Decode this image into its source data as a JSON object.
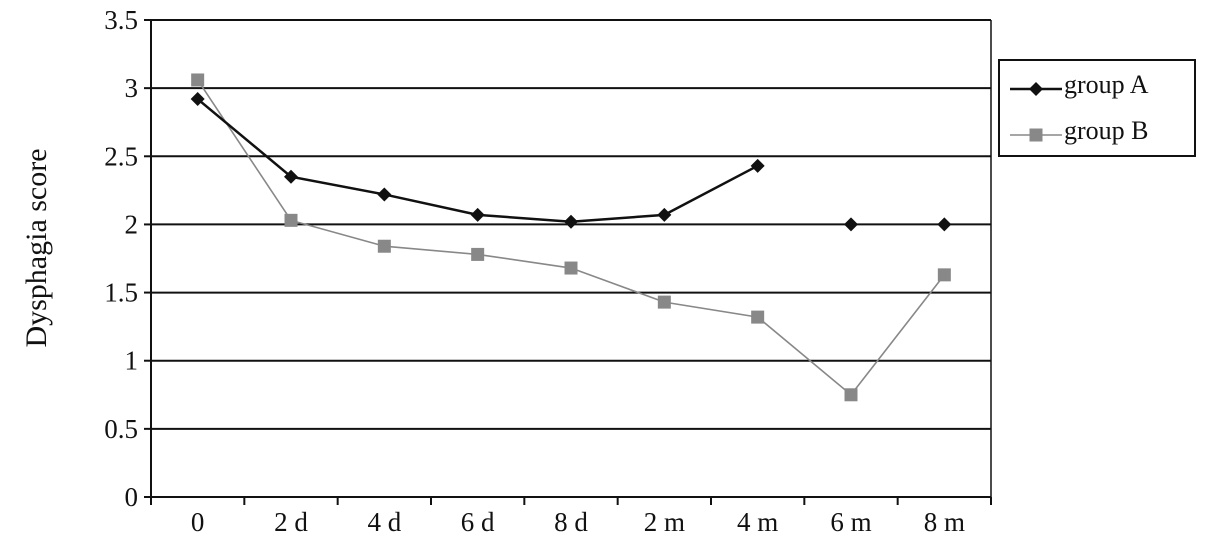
{
  "chart_data": {
    "type": "line",
    "title": "",
    "xlabel": "",
    "ylabel": "Dysphagia score",
    "categories": [
      "0",
      "2 d",
      "4 d",
      "6 d",
      "8 d",
      "2 m",
      "4 m",
      "6 m",
      "8 m"
    ],
    "ylim": [
      0,
      3.5
    ],
    "yticks": [
      "0",
      "0.5",
      "1",
      "1.5",
      "2",
      "2.5",
      "3",
      "3.5"
    ],
    "ytick_values": [
      0,
      0.5,
      1,
      1.5,
      2,
      2.5,
      3,
      3.5
    ],
    "grid": true,
    "legend_position": "right",
    "series": [
      {
        "name": "group A",
        "marker": "diamond",
        "color": "#111111",
        "values": [
          2.92,
          2.35,
          2.22,
          2.07,
          2.02,
          2.07,
          2.43,
          2.0,
          2.0
        ],
        "connected_points": 7
      },
      {
        "name": "group B",
        "marker": "square",
        "color": "#888888",
        "values": [
          3.06,
          2.03,
          1.84,
          1.78,
          1.68,
          1.43,
          1.32,
          0.75,
          1.63
        ],
        "connected_points": 9
      }
    ]
  }
}
